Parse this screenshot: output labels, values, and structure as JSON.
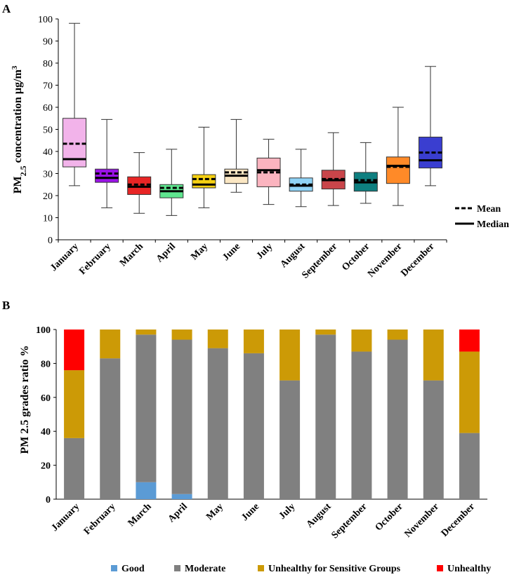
{
  "chart_data": [
    {
      "type": "boxplot",
      "panel_label": "A",
      "ylabel_parts": [
        "PM",
        "2.5",
        " concentration  µg/m",
        "3"
      ],
      "ylim": [
        0,
        100
      ],
      "yticks": [
        0,
        10,
        20,
        30,
        40,
        50,
        60,
        70,
        80,
        90,
        100
      ],
      "categories": [
        "January",
        "February",
        "March",
        "April",
        "May",
        "June",
        "July",
        "August",
        "September",
        "October",
        "November",
        "December"
      ],
      "colors": [
        "#f2b3ea",
        "#9b12e8",
        "#e82525",
        "#5fe68f",
        "#f5d012",
        "#fbe7c3",
        "#fbb4bf",
        "#8fd3f6",
        "#c9454a",
        "#0e7f80",
        "#ff8a28",
        "#3a3ed0"
      ],
      "boxes": [
        {
          "min": 24.5,
          "q1": 33.0,
          "median": 36.5,
          "mean": 43.5,
          "q3": 55.0,
          "max": 98.0
        },
        {
          "min": 14.5,
          "q1": 26.0,
          "median": 28.0,
          "mean": 30.0,
          "q3": 32.0,
          "max": 54.5
        },
        {
          "min": 12.0,
          "q1": 20.5,
          "median": 24.0,
          "mean": 25.0,
          "q3": 28.5,
          "max": 39.5
        },
        {
          "min": 11.0,
          "q1": 19.0,
          "median": 22.0,
          "mean": 23.5,
          "q3": 25.0,
          "max": 41.0
        },
        {
          "min": 14.5,
          "q1": 23.5,
          "median": 25.0,
          "mean": 27.5,
          "q3": 29.5,
          "max": 51.0
        },
        {
          "min": 21.5,
          "q1": 25.5,
          "median": 29.0,
          "mean": 30.5,
          "q3": 32.0,
          "max": 54.5
        },
        {
          "min": 16.0,
          "q1": 24.0,
          "median": 31.5,
          "mean": 30.5,
          "q3": 37.0,
          "max": 45.5
        },
        {
          "min": 15.0,
          "q1": 22.0,
          "median": 24.5,
          "mean": 25.0,
          "q3": 28.0,
          "max": 41.0
        },
        {
          "min": 15.5,
          "q1": 23.0,
          "median": 27.0,
          "mean": 27.5,
          "q3": 31.5,
          "max": 48.5
        },
        {
          "min": 16.5,
          "q1": 22.0,
          "median": 26.0,
          "mean": 27.0,
          "q3": 30.5,
          "max": 44.0
        },
        {
          "min": 15.5,
          "q1": 25.5,
          "median": 33.5,
          "mean": 33.0,
          "q3": 37.5,
          "max": 60.0
        },
        {
          "min": 24.5,
          "q1": 32.5,
          "median": 36.0,
          "mean": 39.5,
          "q3": 46.5,
          "max": 78.5
        }
      ],
      "legend": {
        "mean": "Mean",
        "median": "Median",
        "position": "bottom-right"
      }
    },
    {
      "type": "stacked_bar",
      "panel_label": "B",
      "ylabel": "PM 2.5 grades ratio %",
      "ylim": [
        0,
        100
      ],
      "yticks": [
        0,
        20,
        40,
        60,
        80,
        100
      ],
      "categories": [
        "January",
        "February",
        "March",
        "April",
        "May",
        "June",
        "July",
        "August",
        "September",
        "October",
        "November",
        "December"
      ],
      "series": [
        {
          "name": "Good",
          "color": "#5b9bd5",
          "values": [
            0,
            0,
            10,
            3,
            0,
            0,
            0,
            0,
            0,
            0,
            0,
            0
          ]
        },
        {
          "name": "Moderate",
          "color": "#808080",
          "values": [
            36,
            83,
            87,
            91,
            89,
            86,
            70,
            97,
            87,
            94,
            70,
            39
          ]
        },
        {
          "name": "Unhealthy for Sensitive Groups",
          "color": "#cc9a06",
          "values": [
            40,
            17,
            3,
            6,
            11,
            14,
            30,
            3,
            13,
            6,
            30,
            48
          ]
        },
        {
          "name": "Unhealthy",
          "color": "#ff0000",
          "values": [
            24,
            0,
            0,
            0,
            0,
            0,
            0,
            0,
            0,
            0,
            0,
            13
          ]
        }
      ],
      "legend_position": "bottom"
    }
  ]
}
